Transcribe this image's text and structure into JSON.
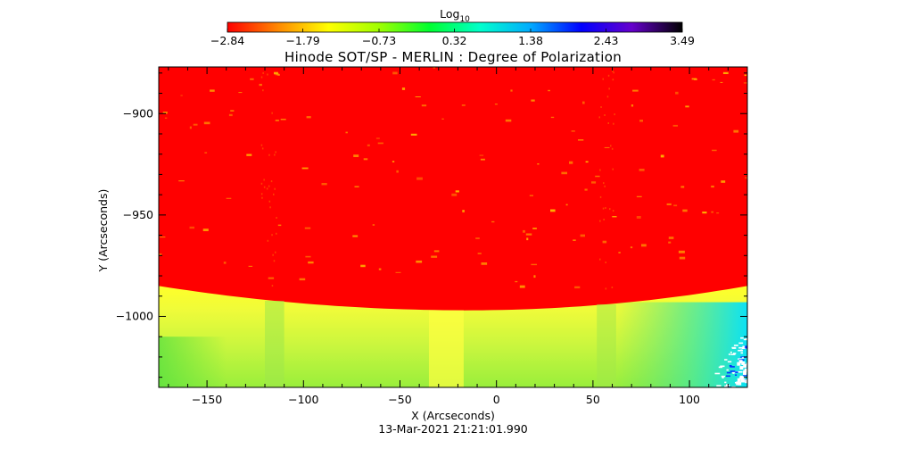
{
  "chart_data": {
    "type": "heatmap",
    "title": "Hinode SOT/SP - MERLIN : Degree of Polarization",
    "xlabel": "X (Arcseconds)",
    "ylabel": "Y (Arcseconds)",
    "footer": "13-Mar-2021 21:21:01.990",
    "xlim": [
      -175,
      130
    ],
    "ylim": [
      -1035,
      -877
    ],
    "x_ticks": [
      -150,
      -100,
      -50,
      0,
      50,
      100
    ],
    "x_tick_labels": [
      "−150",
      "−100",
      "−50",
      "0",
      "50",
      "100"
    ],
    "y_ticks": [
      -900,
      -950,
      -1000
    ],
    "y_tick_labels": [
      "−900",
      "−950",
      "−1000"
    ],
    "limb_y": {
      "at_x_min": -985,
      "at_center": -997,
      "at_x_max": -985,
      "center_x": -15
    },
    "colorbar": {
      "label_base": "Log",
      "label_sub": "10",
      "ticks": [
        -2.84,
        -1.79,
        -0.73,
        0.32,
        1.38,
        2.43,
        3.49
      ],
      "tick_labels": [
        "−2.84",
        "−1.79",
        "−0.73",
        "0.32",
        "1.38",
        "2.43",
        "3.49"
      ],
      "range": [
        -2.84,
        3.49
      ],
      "colors": [
        "#ff0000",
        "#ff8800",
        "#ffff00",
        "#a0ff00",
        "#00ff30",
        "#00ffcc",
        "#00aaff",
        "#0000ff",
        "#6600cc",
        "#000000"
      ]
    },
    "regions": {
      "off_disk": "#ff0000",
      "near_limb": "#ffff00",
      "disk_interior": "#b8f43a",
      "disk_edge_right": "#00e0ff"
    }
  }
}
